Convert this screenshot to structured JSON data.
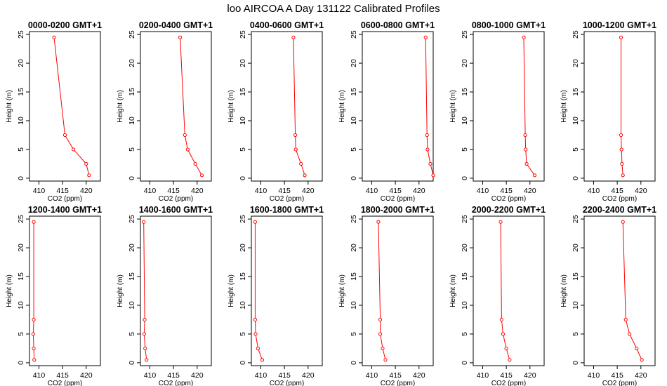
{
  "title": "loo AIRCOA A  Day 131122  Calibrated Profiles",
  "chart_data": {
    "type": "line",
    "shared_axes": {
      "xlabel": "CO2 (ppm)",
      "ylabel": "Height (m)",
      "xlim": [
        408,
        423
      ],
      "ylim": [
        -0.5,
        25.5
      ],
      "xticks": [
        410,
        415,
        420
      ],
      "yticks": [
        0,
        5,
        10,
        15,
        20,
        25
      ],
      "grid": false,
      "series_color": "#ff0000"
    },
    "heights": [
      0.5,
      2.5,
      5,
      7.5,
      24.5
    ],
    "panels": [
      {
        "title": "0000-0200 GMT+1",
        "x": [
          420.6,
          420.0,
          417.3,
          415.5,
          413.2
        ]
      },
      {
        "title": "0200-0400 GMT+1",
        "x": [
          421.0,
          419.6,
          418.0,
          417.4,
          416.4
        ]
      },
      {
        "title": "0400-0600 GMT+1",
        "x": [
          419.3,
          418.5,
          417.4,
          417.3,
          416.9
        ]
      },
      {
        "title": "0600-0800 GMT+1",
        "x": [
          423.0,
          422.4,
          421.8,
          421.7,
          421.4
        ]
      },
      {
        "title": "0800-1000 GMT+1",
        "x": [
          421.0,
          419.3,
          419.1,
          419.0,
          418.7
        ]
      },
      {
        "title": "1000-1200 GMT+1",
        "x": [
          416.2,
          416.0,
          415.9,
          415.8,
          415.8
        ]
      },
      {
        "title": "1200-1400 GMT+1",
        "x": [
          409.0,
          408.9,
          408.8,
          408.9,
          408.9
        ]
      },
      {
        "title": "1400-1600 GMT+1",
        "x": [
          409.3,
          409.0,
          408.8,
          408.9,
          408.7
        ]
      },
      {
        "title": "1600-1800 GMT+1",
        "x": [
          410.3,
          409.4,
          408.9,
          408.8,
          408.8
        ]
      },
      {
        "title": "1800-2000 GMT+1",
        "x": [
          412.9,
          412.3,
          411.8,
          411.8,
          411.4
        ]
      },
      {
        "title": "2000-2200 GMT+1",
        "x": [
          415.7,
          415.0,
          414.3,
          414.0,
          413.8
        ]
      },
      {
        "title": "2200-2400 GMT+1",
        "x": [
          420.2,
          419.1,
          417.6,
          416.8,
          416.2
        ]
      }
    ]
  }
}
